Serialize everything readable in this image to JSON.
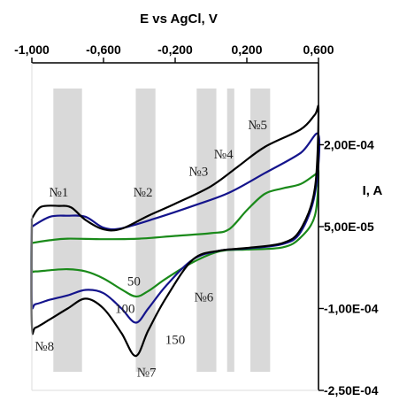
{
  "chart_data": {
    "type": "line",
    "title": "",
    "xlabel": "E vs AgCl, V",
    "ylabel": "I, A",
    "xlim": [
      -1.0,
      0.6
    ],
    "ylim": [
      -0.00025,
      0.00035
    ],
    "x_ticks": [
      {
        "value": -1.0,
        "label": "-1,000"
      },
      {
        "value": -0.6,
        "label": "-0,600"
      },
      {
        "value": -0.2,
        "label": "-0,200"
      },
      {
        "value": 0.2,
        "label": "0,200"
      },
      {
        "value": 0.6,
        "label": "0,600"
      }
    ],
    "y_ticks": [
      {
        "value": 0.0002,
        "label": "2,00E-04"
      },
      {
        "value": 5e-05,
        "label": "5,00E-05"
      },
      {
        "value": -0.0001,
        "label": "-1,00E-04"
      },
      {
        "value": -0.00025,
        "label": "-2,50E-04"
      }
    ],
    "grid": false,
    "x_axis_position": "top",
    "y_axis_position": "right",
    "bands": [
      [
        -0.88,
        -0.72
      ],
      [
        -0.42,
        -0.31
      ],
      [
        -0.08,
        0.03
      ],
      [
        0.09,
        0.13
      ],
      [
        0.22,
        0.33
      ]
    ],
    "band_color": "#d9d9d9",
    "series": [
      {
        "name": "50",
        "color": "#1a8a1a",
        "upper": [
          [
            -1.0,
            2e-05
          ],
          [
            -0.9,
            2.5e-05
          ],
          [
            -0.8,
            2.8e-05
          ],
          [
            -0.6,
            2.7e-05
          ],
          [
            -0.4,
            2.8e-05
          ],
          [
            -0.2,
            3.3e-05
          ],
          [
            0.0,
            3.8e-05
          ],
          [
            0.1,
            4.5e-05
          ],
          [
            0.2,
            8e-05
          ],
          [
            0.3,
            0.00011
          ],
          [
            0.4,
            0.00012
          ],
          [
            0.5,
            0.000128
          ],
          [
            0.58,
            0.000145
          ],
          [
            0.6,
            0.000148
          ]
        ],
        "lower": [
          [
            0.6,
            0.000148
          ],
          [
            0.58,
            7e-05
          ],
          [
            0.5,
            3e-05
          ],
          [
            0.4,
            1.2e-05
          ],
          [
            0.2,
            8e-06
          ],
          [
            0.05,
            5e-06
          ],
          [
            -0.1,
            -1.5e-05
          ],
          [
            -0.25,
            -4.5e-05
          ],
          [
            -0.35,
            -6.8e-05
          ],
          [
            -0.42,
            -7.8e-05
          ],
          [
            -0.5,
            -6.5e-05
          ],
          [
            -0.6,
            -4.5e-05
          ],
          [
            -0.7,
            -3.2e-05
          ],
          [
            -0.8,
            -2.8e-05
          ],
          [
            -0.9,
            -3e-05
          ],
          [
            -0.98,
            -3.2e-05
          ],
          [
            -1.0,
            -2.8e-05
          ],
          [
            -1.0,
            2e-05
          ]
        ]
      },
      {
        "name": "100",
        "color": "#14148c",
        "upper": [
          [
            -1.0,
            5e-05
          ],
          [
            -0.9,
            6.8e-05
          ],
          [
            -0.8,
            7e-05
          ],
          [
            -0.7,
            6.8e-05
          ],
          [
            -0.6,
            4.8e-05
          ],
          [
            -0.5,
            4.7e-05
          ],
          [
            -0.3,
            6.6e-05
          ],
          [
            -0.1,
            8.8e-05
          ],
          [
            0.1,
            0.000112
          ],
          [
            0.3,
            0.000148
          ],
          [
            0.5,
            0.000185
          ],
          [
            0.6,
            0.000218
          ]
        ],
        "lower": [
          [
            0.6,
            0.000218
          ],
          [
            0.58,
            0.00011
          ],
          [
            0.5,
            4e-05
          ],
          [
            0.4,
            1.8e-05
          ],
          [
            0.2,
            1e-05
          ],
          [
            0.05,
            6e-06
          ],
          [
            -0.1,
            -1e-05
          ],
          [
            -0.25,
            -5.8e-05
          ],
          [
            -0.35,
            -0.0001
          ],
          [
            -0.42,
            -0.000126
          ],
          [
            -0.5,
            -0.0001
          ],
          [
            -0.6,
            -7.2e-05
          ],
          [
            -0.7,
            -6.6e-05
          ],
          [
            -0.8,
            -7.6e-05
          ],
          [
            -0.9,
            -8.4e-05
          ],
          [
            -0.98,
            -9.2e-05
          ],
          [
            -1.0,
            -8.8e-05
          ],
          [
            -1.0,
            5e-05
          ]
        ]
      },
      {
        "name": "150",
        "color": "#000000",
        "upper": [
          [
            -1.0,
            6.5e-05
          ],
          [
            -0.95,
            8.6e-05
          ],
          [
            -0.85,
            8.8e-05
          ],
          [
            -0.78,
            8.5e-05
          ],
          [
            -0.7,
            6.2e-05
          ],
          [
            -0.6,
            4.5e-05
          ],
          [
            -0.5,
            4.6e-05
          ],
          [
            -0.35,
            7e-05
          ],
          [
            -0.2,
            9.2e-05
          ],
          [
            0.0,
            0.000124
          ],
          [
            0.15,
            0.00016
          ],
          [
            0.3,
            0.000196
          ],
          [
            0.5,
            0.000228
          ],
          [
            0.58,
            0.000255
          ],
          [
            0.6,
            0.000262
          ]
        ],
        "lower": [
          [
            0.6,
            0.000262
          ],
          [
            0.58,
            0.00012
          ],
          [
            0.5,
            4.5e-05
          ],
          [
            0.4,
            2e-05
          ],
          [
            0.2,
            1.1e-05
          ],
          [
            0.05,
            6e-06
          ],
          [
            -0.1,
            -1e-05
          ],
          [
            -0.25,
            -8e-05
          ],
          [
            -0.35,
            -0.00014
          ],
          [
            -0.42,
            -0.000187
          ],
          [
            -0.5,
            -0.000145
          ],
          [
            -0.6,
            -0.0001
          ],
          [
            -0.7,
            -8.2e-05
          ],
          [
            -0.8,
            -0.0001
          ],
          [
            -0.9,
            -0.00012
          ],
          [
            -0.98,
            -0.000135
          ],
          [
            -1.0,
            -0.00013
          ],
          [
            -1.0,
            6.5e-05
          ]
        ]
      }
    ],
    "annotations": [
      {
        "text": "№1",
        "x": -0.85,
        "y": 0.000105
      },
      {
        "text": "№2",
        "x": -0.38,
        "y": 0.000105
      },
      {
        "text": "№3",
        "x": -0.07,
        "y": 0.000143
      },
      {
        "text": "№4",
        "x": 0.07,
        "y": 0.000175
      },
      {
        "text": "№5",
        "x": 0.26,
        "y": 0.000228
      },
      {
        "text": "№6",
        "x": -0.04,
        "y": -8.7e-05
      },
      {
        "text": "№7",
        "x": -0.36,
        "y": -0.000225
      },
      {
        "text": "№8",
        "x": -0.93,
        "y": -0.000177
      },
      {
        "text": "50",
        "x": -0.43,
        "y": -5.8e-05
      },
      {
        "text": "100",
        "x": -0.48,
        "y": -0.000108
      },
      {
        "text": "150",
        "x": -0.2,
        "y": -0.000165
      }
    ]
  }
}
